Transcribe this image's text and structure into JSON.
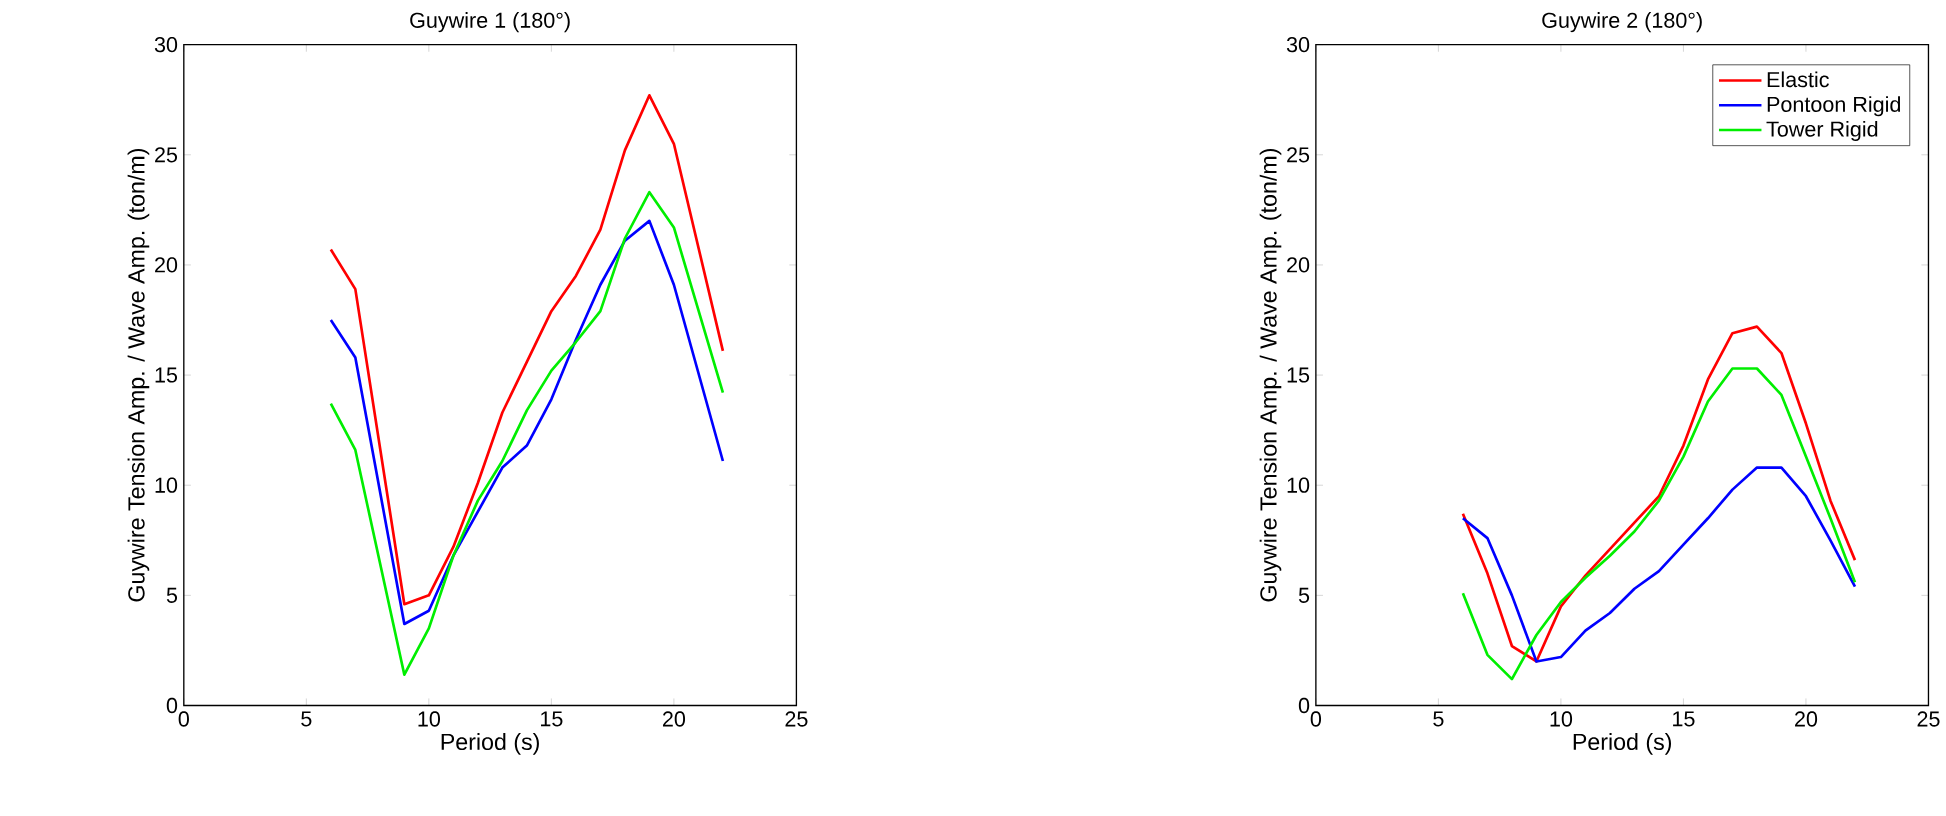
{
  "chart_data": [
    {
      "type": "line",
      "title": "Guywire 1 (180°)",
      "xlabel": "Period (s)",
      "ylabel": "Guywire Tension Amp. / Wave Amp. (ton/m)",
      "xlim": [
        0,
        25
      ],
      "ylim": [
        0,
        30
      ],
      "xticks": [
        0,
        5,
        10,
        15,
        20,
        25
      ],
      "yticks": [
        0,
        5,
        10,
        15,
        20,
        25,
        30
      ],
      "grid": false,
      "legend": false,
      "line_style": "solid",
      "marker": "none",
      "x": [
        6,
        7,
        9,
        10,
        11,
        12,
        13,
        14,
        15,
        16,
        17,
        18,
        19,
        20,
        22
      ],
      "series": [
        {
          "color": "#ff0000",
          "values": [
            20.7,
            18.9,
            4.6,
            5.0,
            7.2,
            10.1,
            13.3,
            15.6,
            17.9,
            19.5,
            21.6,
            25.2,
            27.7,
            25.5,
            16.1
          ]
        },
        {
          "color": "#0000ff",
          "values": [
            17.5,
            15.8,
            3.7,
            4.3,
            6.8,
            8.8,
            10.8,
            11.8,
            13.9,
            16.6,
            19.1,
            21.1,
            22.0,
            19.1,
            11.1
          ]
        },
        {
          "color": "#00ee00",
          "values": [
            13.7,
            11.6,
            1.4,
            3.5,
            6.8,
            9.3,
            11.1,
            13.4,
            15.2,
            16.5,
            17.9,
            21.2,
            23.3,
            21.7,
            14.2
          ]
        }
      ]
    },
    {
      "type": "line",
      "title": "Guywire 2 (180°)",
      "xlabel": "Period (s)",
      "ylabel": "Guywire Tension Amp. / Wave Amp. (ton/m)",
      "xlim": [
        0,
        25
      ],
      "ylim": [
        0,
        30
      ],
      "xticks": [
        0,
        5,
        10,
        15,
        20,
        25
      ],
      "yticks": [
        0,
        5,
        10,
        15,
        20,
        25,
        30
      ],
      "grid": false,
      "legend": "top right",
      "line_style": "solid",
      "marker": "none",
      "x": [
        6,
        7,
        8,
        9,
        10,
        11,
        12,
        13,
        14,
        15,
        16,
        17,
        18,
        19,
        20,
        21,
        22
      ],
      "series": [
        {
          "name": "Elastic",
          "color": "#ff0000",
          "values": [
            8.7,
            6.0,
            2.7,
            2.0,
            4.5,
            5.9,
            7.1,
            8.3,
            9.5,
            11.8,
            14.8,
            16.9,
            17.2,
            16.0,
            12.8,
            9.3,
            6.6
          ]
        },
        {
          "name": "Pontoon Rigid",
          "color": "#0000ff",
          "values": [
            8.5,
            7.6,
            5.0,
            2.0,
            2.2,
            3.4,
            4.2,
            5.3,
            6.1,
            7.3,
            8.5,
            9.8,
            10.8,
            10.8,
            9.5,
            7.5,
            5.4
          ]
        },
        {
          "name": "Tower Rigid",
          "color": "#00ee00",
          "values": [
            5.1,
            2.3,
            1.2,
            3.2,
            4.7,
            5.8,
            6.8,
            7.9,
            9.3,
            11.3,
            13.8,
            15.3,
            15.3,
            14.1,
            11.3,
            8.5,
            5.6
          ]
        }
      ]
    }
  ]
}
